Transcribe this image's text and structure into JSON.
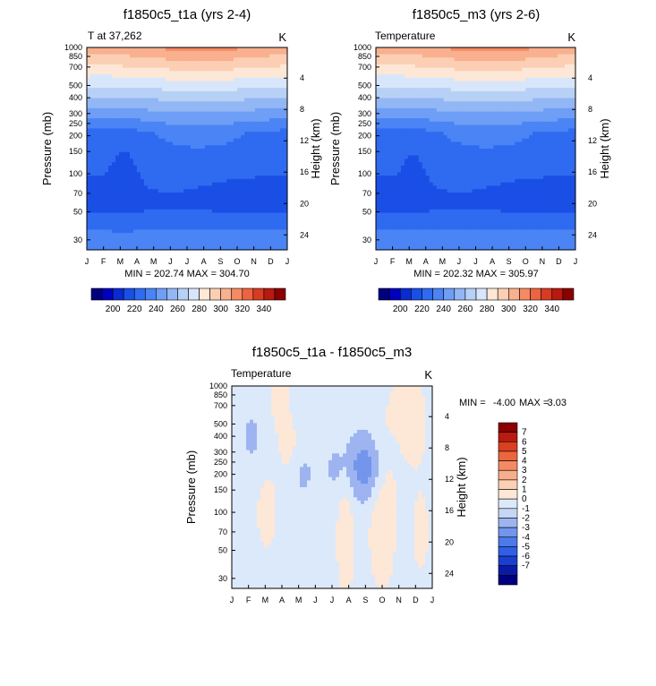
{
  "chart_data": [
    {
      "type": "heatmap",
      "title": "f1850c5_t1a (yrs 2-4)",
      "left_label": "T at 37,262",
      "right_label": "K",
      "xlabel": "",
      "ylabel": "Pressure (mb)",
      "y2label": "Height (km)",
      "x_ticks": [
        "J",
        "F",
        "M",
        "A",
        "M",
        "J",
        "J",
        "A",
        "S",
        "O",
        "N",
        "D",
        "J"
      ],
      "y_ticks": [
        30,
        50,
        70,
        100,
        150,
        200,
        250,
        300,
        400,
        500,
        700,
        850,
        1000
      ],
      "y2_ticks": [
        24,
        20,
        16,
        12,
        8,
        4
      ],
      "ylim": [
        1000,
        25
      ],
      "stats": "MIN = 202.74 MAX = 304.70",
      "field": "abs_a",
      "colorbar": {
        "labels": [
          200,
          220,
          240,
          260,
          280,
          300,
          320,
          340
        ]
      }
    },
    {
      "type": "heatmap",
      "title": "f1850c5_m3 (yrs 2-6)",
      "left_label": "Temperature",
      "right_label": "K",
      "xlabel": "",
      "ylabel": "Pressure (mb)",
      "y2label": "Height (km)",
      "x_ticks": [
        "J",
        "F",
        "M",
        "A",
        "M",
        "J",
        "J",
        "A",
        "S",
        "O",
        "N",
        "D",
        "J"
      ],
      "y_ticks": [
        30,
        50,
        70,
        100,
        150,
        200,
        250,
        300,
        400,
        500,
        700,
        850,
        1000
      ],
      "y2_ticks": [
        24,
        20,
        16,
        12,
        8,
        4
      ],
      "ylim": [
        1000,
        25
      ],
      "stats": "MIN = 202.32 MAX = 305.97",
      "field": "abs_b",
      "colorbar": {
        "labels": [
          200,
          220,
          240,
          260,
          280,
          300,
          320,
          340
        ]
      }
    },
    {
      "type": "heatmap",
      "title": "f1850c5_t1a - f1850c5_m3",
      "left_label": "Temperature",
      "right_label": "K",
      "xlabel": "",
      "ylabel": "Pressure (mb)",
      "y2label": "Height (km)",
      "x_ticks": [
        "J",
        "F",
        "M",
        "A",
        "M",
        "J",
        "J",
        "A",
        "S",
        "O",
        "N",
        "D",
        "J"
      ],
      "y_ticks": [
        30,
        50,
        70,
        100,
        150,
        200,
        250,
        300,
        400,
        500,
        700,
        850,
        1000
      ],
      "y2_ticks": [
        24,
        20,
        16,
        12,
        8,
        4
      ],
      "ylim": [
        1000,
        25
      ],
      "stats_min_label": "MIN =",
      "stats_min": "-4.00",
      "stats_max_label": "MAX =",
      "stats_max": "3.03",
      "field": "diff",
      "colorbar": {
        "labels": [
          7,
          6,
          5,
          4,
          3,
          2,
          1,
          0,
          -1,
          -2,
          -3,
          -4,
          -5,
          -6,
          -7
        ]
      }
    }
  ],
  "colors": {
    "absolute_scale": [
      "#00007f",
      "#0000bf",
      "#0a2ad2",
      "#1a4fe6",
      "#2f6bf0",
      "#4a84f5",
      "#6e9ef5",
      "#93b7f5",
      "#b7d0f5",
      "#d7e6fa",
      "#fde7d6",
      "#fccfb4",
      "#f9b08e",
      "#f58a63",
      "#ec6440",
      "#d93a22",
      "#b61a10",
      "#8b0000"
    ],
    "difference_scale": [
      "#00007f",
      "#0a1aa6",
      "#1a3fd0",
      "#2f5fe6",
      "#4d7ae8",
      "#7395ec",
      "#9db4f0",
      "#c6d6f6",
      "#dce9fb",
      "#fde7d6",
      "#fbd0b4",
      "#f8ae8b",
      "#f48a62",
      "#ec663d",
      "#da401f",
      "#b81b0f",
      "#8b0000"
    ]
  }
}
